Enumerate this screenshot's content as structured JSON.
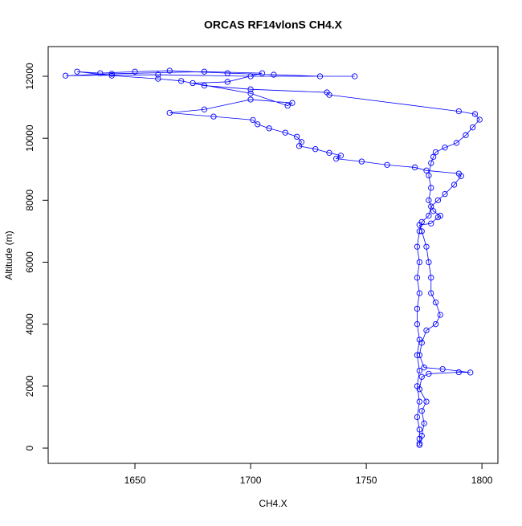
{
  "chart_data": {
    "type": "line",
    "title": "ORCAS RF14vlonS CH4.X",
    "x_label": "CH4.X",
    "y_label": "Altitude (m)",
    "color": "#0000ff",
    "marker": "circle",
    "xlim": [
      1612.5,
      1806.9
    ],
    "ylim": [
      -492,
      12959
    ],
    "xticks": [
      1650,
      1700,
      1750,
      1800
    ],
    "yticks": [
      0,
      2000,
      4000,
      6000,
      8000,
      10000,
      12000
    ],
    "x": [
      1773,
      1774,
      1775,
      1774,
      1776,
      1773,
      1774,
      1777,
      1790,
      1795,
      1783,
      1775,
      1773,
      1774,
      1776,
      1780,
      1782,
      1780,
      1778,
      1778,
      1777,
      1776,
      1774,
      1773,
      1778,
      1781,
      1782,
      1779,
      1777,
      1778,
      1777,
      1778,
      1779,
      1780,
      1784,
      1789,
      1793,
      1796,
      1799,
      1797,
      1790,
      1734,
      1733,
      1700,
      1680,
      1670,
      1660,
      1640,
      1625,
      1635,
      1650,
      1665,
      1690,
      1710,
      1730,
      1745,
      1700,
      1660,
      1620,
      1640,
      1680,
      1705,
      1690,
      1675,
      1700,
      1716,
      1718,
      1700,
      1680,
      1665,
      1684,
      1701,
      1703,
      1708,
      1715,
      1720,
      1722,
      1721,
      1728,
      1734,
      1739,
      1737,
      1748,
      1759,
      1771,
      1776,
      1790,
      1791,
      1788,
      1784,
      1781,
      1778,
      1777,
      1774,
      1773,
      1772,
      1773,
      1772,
      1773,
      1772,
      1772,
      1773,
      1772,
      1773,
      1772,
      1773,
      1772,
      1773,
      1773,
      1773
    ],
    "values": [
      100,
      400,
      800,
      1200,
      1500,
      1900,
      2300,
      2400,
      2450,
      2440,
      2550,
      2600,
      3000,
      3400,
      3800,
      4000,
      4300,
      4700,
      5000,
      5500,
      6000,
      6500,
      7000,
      7200,
      7250,
      7450,
      7500,
      7650,
      8000,
      8400,
      8800,
      9200,
      9400,
      9550,
      9700,
      9850,
      10100,
      10350,
      10600,
      10780,
      10870,
      11400,
      11480,
      11580,
      11700,
      11850,
      11920,
      12020,
      12150,
      12100,
      12150,
      12180,
      12100,
      12050,
      12000,
      12000,
      12000,
      12050,
      12020,
      12080,
      12150,
      12100,
      11820,
      11780,
      11450,
      11050,
      11140,
      11250,
      10930,
      10820,
      10700,
      10590,
      10450,
      10320,
      10180,
      10050,
      9880,
      9750,
      9650,
      9530,
      9440,
      9340,
      9250,
      9140,
      9060,
      8960,
      8860,
      8780,
      8500,
      8200,
      8000,
      7800,
      7500,
      7300,
      7000,
      6500,
      6000,
      5500,
      5000,
      4500,
      4000,
      3500,
      3000,
      2500,
      2000,
      1500,
      1000,
      600,
      300,
      150
    ]
  }
}
